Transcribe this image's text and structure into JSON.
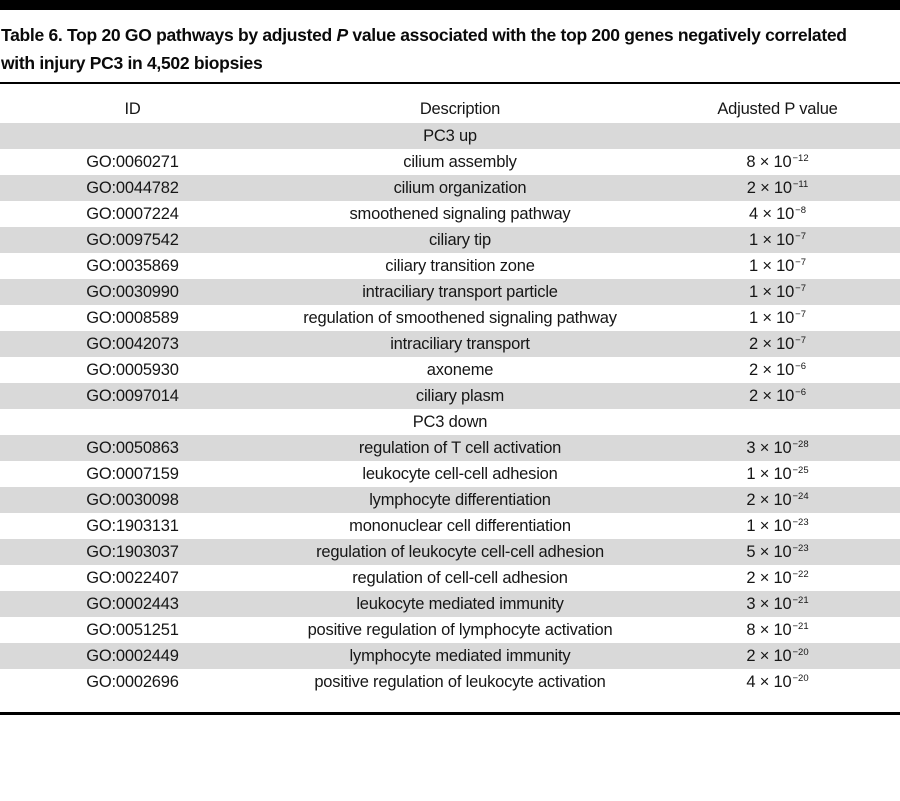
{
  "title": {
    "line1_pre": "Table 6. Top 20 GO pathways by adjusted ",
    "line1_italic": "P",
    "line1_post": " value associated with the top 200 genes negatively correlated",
    "line2": "with injury PC3 in 4,502 biopsies"
  },
  "table": {
    "columns": [
      "ID",
      "Description",
      "Adjusted P value"
    ],
    "sections": [
      {
        "label": "PC3 up",
        "rows": [
          {
            "id": "GO:0060271",
            "description": "cilium assembly",
            "p_base": "8 × 10",
            "p_exponent": "−12"
          },
          {
            "id": "GO:0044782",
            "description": "cilium organization",
            "p_base": "2 × 10",
            "p_exponent": "−11"
          },
          {
            "id": "GO:0007224",
            "description": "smoothened signaling pathway",
            "p_base": "4 × 10",
            "p_exponent": "−8"
          },
          {
            "id": "GO:0097542",
            "description": "ciliary tip",
            "p_base": "1 × 10",
            "p_exponent": "−7"
          },
          {
            "id": "GO:0035869",
            "description": "ciliary transition zone",
            "p_base": "1 × 10",
            "p_exponent": "−7"
          },
          {
            "id": "GO:0030990",
            "description": "intraciliary transport particle",
            "p_base": "1 × 10",
            "p_exponent": "−7"
          },
          {
            "id": "GO:0008589",
            "description": "regulation of smoothened signaling pathway",
            "p_base": "1 × 10",
            "p_exponent": "−7"
          },
          {
            "id": "GO:0042073",
            "description": "intraciliary transport",
            "p_base": "2 × 10",
            "p_exponent": "−7"
          },
          {
            "id": "GO:0005930",
            "description": "axoneme",
            "p_base": "2 × 10",
            "p_exponent": "−6"
          },
          {
            "id": "GO:0097014",
            "description": "ciliary plasm",
            "p_base": "2 × 10",
            "p_exponent": "−6"
          }
        ]
      },
      {
        "label": "PC3 down",
        "rows": [
          {
            "id": "GO:0050863",
            "description": "regulation of T cell activation",
            "p_base": "3 × 10",
            "p_exponent": "−28"
          },
          {
            "id": "GO:0007159",
            "description": "leukocyte cell-cell adhesion",
            "p_base": "1 × 10",
            "p_exponent": "−25"
          },
          {
            "id": "GO:0030098",
            "description": "lymphocyte differentiation",
            "p_base": "2 × 10",
            "p_exponent": "−24"
          },
          {
            "id": "GO:1903131",
            "description": "mononuclear cell differentiation",
            "p_base": "1 × 10",
            "p_exponent": "−23"
          },
          {
            "id": "GO:1903037",
            "description": "regulation of leukocyte cell-cell adhesion",
            "p_base": "5 × 10",
            "p_exponent": "−23"
          },
          {
            "id": "GO:0022407",
            "description": "regulation of cell-cell adhesion",
            "p_base": "2 × 10",
            "p_exponent": "−22"
          },
          {
            "id": "GO:0002443",
            "description": "leukocyte mediated immunity",
            "p_base": "3 × 10",
            "p_exponent": "−21"
          },
          {
            "id": "GO:0051251",
            "description": "positive regulation of lymphocyte activation",
            "p_base": "8 × 10",
            "p_exponent": "−21"
          },
          {
            "id": "GO:0002449",
            "description": "lymphocyte mediated immunity",
            "p_base": "2 × 10",
            "p_exponent": "−20"
          },
          {
            "id": "GO:0002696",
            "description": "positive regulation of leukocyte activation",
            "p_base": "4 × 10",
            "p_exponent": "−20"
          }
        ]
      }
    ]
  },
  "colors": {
    "shaded_row": "#d9d9d9",
    "rule": "#000000",
    "text": "#111111",
    "background": "#ffffff"
  }
}
